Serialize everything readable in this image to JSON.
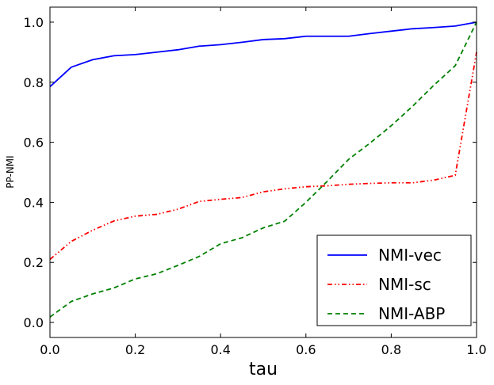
{
  "chart_data": {
    "type": "line",
    "xlabel": "tau",
    "ylabel": "PP-NMI",
    "xlim": [
      0,
      1
    ],
    "ylim": [
      -0.05,
      1.05
    ],
    "xticks": [
      "0.0",
      "0.2",
      "0.4",
      "0.6",
      "0.8",
      "1.0"
    ],
    "yticks": [
      "0.0",
      "0.2",
      "0.4",
      "0.6",
      "0.8",
      "1.0"
    ],
    "grid": false,
    "legend_position": "lower-right",
    "x": [
      0,
      0.05,
      0.1,
      0.15,
      0.2,
      0.25,
      0.3,
      0.35,
      0.4,
      0.45,
      0.5,
      0.55,
      0.6,
      0.65,
      0.7,
      0.75,
      0.8,
      0.85,
      0.9,
      0.95,
      1.0
    ],
    "series": [
      {
        "name": "NMI-vec",
        "color": "#0000ff",
        "style": "solid",
        "values": [
          0.785,
          0.85,
          0.875,
          0.888,
          0.892,
          0.9,
          0.908,
          0.92,
          0.925,
          0.933,
          0.942,
          0.945,
          0.953,
          0.953,
          0.953,
          0.962,
          0.97,
          0.978,
          0.982,
          0.987,
          1.0
        ]
      },
      {
        "name": "NMI-sc",
        "color": "#ff0000",
        "style": "dashdot",
        "values": [
          0.21,
          0.27,
          0.307,
          0.338,
          0.354,
          0.36,
          0.377,
          0.403,
          0.41,
          0.416,
          0.435,
          0.445,
          0.452,
          0.455,
          0.46,
          0.463,
          0.465,
          0.465,
          0.474,
          0.49,
          0.9
        ]
      },
      {
        "name": "NMI-ABP",
        "color": "#008000",
        "style": "dashed",
        "values": [
          0.018,
          0.07,
          0.095,
          0.115,
          0.145,
          0.162,
          0.19,
          0.22,
          0.262,
          0.282,
          0.315,
          0.337,
          0.4,
          0.47,
          0.543,
          0.597,
          0.655,
          0.72,
          0.79,
          0.855,
          1.0
        ]
      }
    ]
  }
}
